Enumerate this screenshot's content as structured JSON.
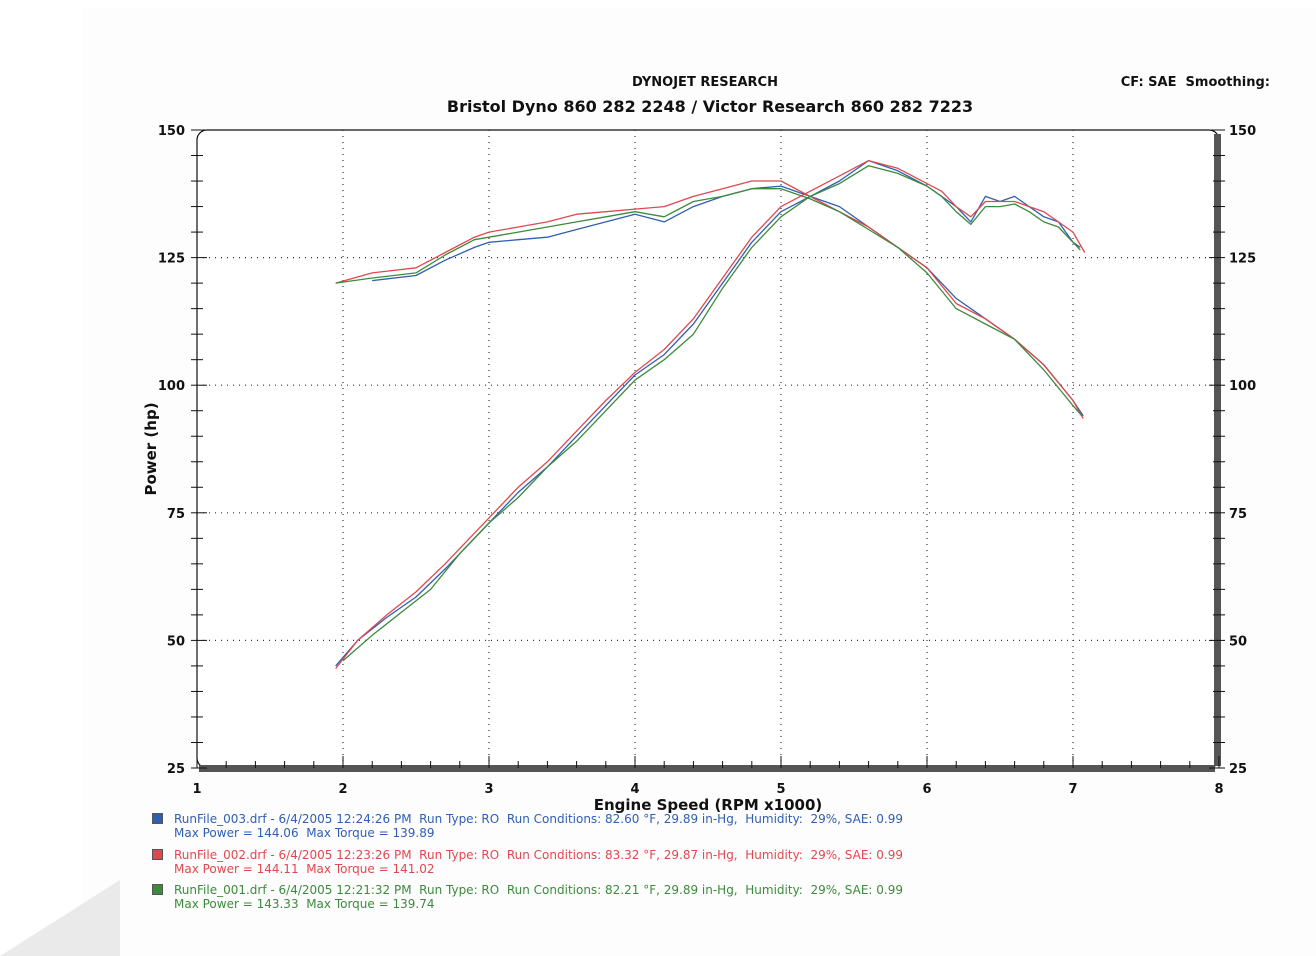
{
  "header": {
    "company": "DYNOJET RESEARCH",
    "subtitle": "Bristol Dyno 860 282 2248  /  Victor Research 860 282 7223",
    "cf": "CF: SAE  Smoothing:"
  },
  "chart_data": {
    "type": "line",
    "title": "Bristol Dyno 860 282 2248  /  Victor Research 860 282 7223",
    "xlabel": "Engine Speed (RPM x1000)",
    "ylabel": "Power (hp)",
    "xlim": [
      1,
      8
    ],
    "ylim": [
      25,
      150
    ],
    "x_ticks": [
      "1",
      "2",
      "3",
      "4",
      "5",
      "6",
      "7",
      "8"
    ],
    "y_ticks": [
      "25",
      "50",
      "75",
      "100",
      "125",
      "150"
    ],
    "y_ticks_right": [
      "25",
      "50",
      "75",
      "100",
      "125",
      "150"
    ],
    "grid": "dotted",
    "series": [
      {
        "name": "RunFile_003",
        "color": "#2f5fb3",
        "power": {
          "x": [
            1.95,
            2.1,
            2.3,
            2.5,
            2.7,
            2.9,
            3.0,
            3.2,
            3.4,
            3.6,
            3.8,
            4.0,
            4.2,
            4.4,
            4.6,
            4.8,
            5.0,
            5.2,
            5.4,
            5.6,
            5.8,
            6.0,
            6.1,
            6.2,
            6.3,
            6.4,
            6.5,
            6.6,
            6.7,
            6.8,
            6.9,
            7.0,
            7.05
          ],
          "y": [
            45,
            50,
            54.5,
            58.5,
            64,
            70,
            73,
            79,
            84,
            90,
            96,
            102,
            106,
            112,
            120,
            128,
            134,
            137,
            140,
            144,
            142,
            139,
            137,
            135,
            132,
            137,
            136,
            137,
            135,
            133,
            132,
            128,
            127
          ]
        },
        "torque": {
          "x": [
            2.2,
            2.5,
            2.7,
            2.9,
            3.0,
            3.2,
            3.4,
            3.6,
            3.8,
            4.0,
            4.2,
            4.4,
            4.6,
            4.8,
            5.0,
            5.2,
            5.4,
            5.6,
            5.8,
            6.0,
            6.2,
            6.4,
            6.6,
            6.8,
            7.0,
            7.07
          ],
          "y": [
            120.5,
            121.5,
            124.5,
            127,
            128,
            128.5,
            129,
            130.5,
            132,
            133.5,
            132,
            135,
            137,
            138.5,
            139,
            137,
            135,
            131,
            127,
            123,
            117,
            113,
            109,
            104,
            97,
            94
          ]
        }
      },
      {
        "name": "RunFile_002",
        "color": "#e0484f",
        "power": {
          "x": [
            1.95,
            2.1,
            2.3,
            2.5,
            2.7,
            2.9,
            3.0,
            3.2,
            3.4,
            3.6,
            3.8,
            4.0,
            4.2,
            4.4,
            4.6,
            4.8,
            5.0,
            5.2,
            5.4,
            5.6,
            5.8,
            6.0,
            6.1,
            6.2,
            6.3,
            6.4,
            6.5,
            6.6,
            6.7,
            6.8,
            6.9,
            7.0,
            7.08
          ],
          "y": [
            44.5,
            50,
            55,
            59.5,
            65,
            71,
            74,
            80,
            85,
            91,
            97,
            102.5,
            107,
            113,
            121,
            129,
            135,
            138,
            141,
            144,
            142.5,
            139.5,
            138,
            135,
            133,
            136,
            136,
            136,
            135,
            134,
            132,
            130,
            126
          ]
        },
        "torque": {
          "x": [
            1.95,
            2.2,
            2.5,
            2.7,
            2.9,
            3.0,
            3.2,
            3.4,
            3.6,
            3.8,
            4.0,
            4.2,
            4.4,
            4.6,
            4.8,
            5.0,
            5.2,
            5.4,
            5.6,
            5.8,
            6.0,
            6.2,
            6.4,
            6.6,
            6.8,
            7.0,
            7.07
          ],
          "y": [
            120,
            122,
            123,
            126,
            129,
            130,
            131,
            132,
            133.5,
            134,
            134.5,
            135,
            137,
            138.5,
            140,
            140,
            137,
            134,
            131,
            127,
            123,
            116,
            113,
            109,
            104,
            97,
            93.5
          ]
        }
      },
      {
        "name": "RunFile_001",
        "color": "#3c8a3c",
        "power": {
          "x": [
            2.0,
            2.2,
            2.4,
            2.6,
            2.8,
            3.0,
            3.2,
            3.4,
            3.6,
            3.8,
            4.0,
            4.2,
            4.4,
            4.6,
            4.8,
            5.0,
            5.2,
            5.4,
            5.6,
            5.8,
            6.0,
            6.1,
            6.2,
            6.3,
            6.4,
            6.5,
            6.6,
            6.7,
            6.8,
            6.9,
            7.0,
            7.05
          ],
          "y": [
            46,
            51,
            55.5,
            60,
            67,
            73,
            78,
            84,
            89,
            95,
            101,
            105,
            110,
            119,
            127,
            133,
            137,
            139.5,
            143,
            141.5,
            139,
            137,
            134,
            131.5,
            135,
            135,
            135.5,
            134,
            132,
            131,
            128,
            126.5
          ]
        },
        "torque": {
          "x": [
            1.95,
            2.2,
            2.5,
            2.7,
            2.9,
            3.0,
            3.2,
            3.4,
            3.6,
            3.8,
            4.0,
            4.2,
            4.4,
            4.6,
            4.8,
            5.0,
            5.2,
            5.4,
            5.6,
            5.8,
            6.0,
            6.2,
            6.4,
            6.6,
            6.8,
            7.0,
            7.06
          ],
          "y": [
            120,
            121,
            122,
            125.5,
            128.5,
            129,
            130,
            131,
            132,
            133,
            134,
            133,
            136,
            137,
            138.5,
            138.5,
            136.5,
            134,
            130.5,
            127,
            122,
            115,
            112,
            109,
            103,
            96,
            94
          ]
        }
      }
    ]
  },
  "legend": [
    {
      "line1": "RunFile_003.drf - 6/4/2005 12:24:26 PM  Run Type: RO  Run Conditions: 82.60 °F, 29.89 in-Hg,  Humidity:  29%, SAE: 0.99",
      "line2": "Max Power = 144.06  Max Torque = 139.89",
      "color": "#2f5fb3"
    },
    {
      "line1": "RunFile_002.drf - 6/4/2005 12:23:26 PM  Run Type: RO  Run Conditions: 83.32 °F, 29.87 in-Hg,  Humidity:  29%, SAE: 0.99",
      "line2": "Max Power = 144.11  Max Torque = 141.02",
      "color": "#e0484f"
    },
    {
      "line1": "RunFile_001.drf - 6/4/2005 12:21:32 PM  Run Type: RO  Run Conditions: 82.21 °F, 29.89 in-Hg,  Humidity:  29%, SAE: 0.99",
      "line2": "Max Power = 143.33  Max Torque = 139.74",
      "color": "#3c8a3c"
    }
  ]
}
